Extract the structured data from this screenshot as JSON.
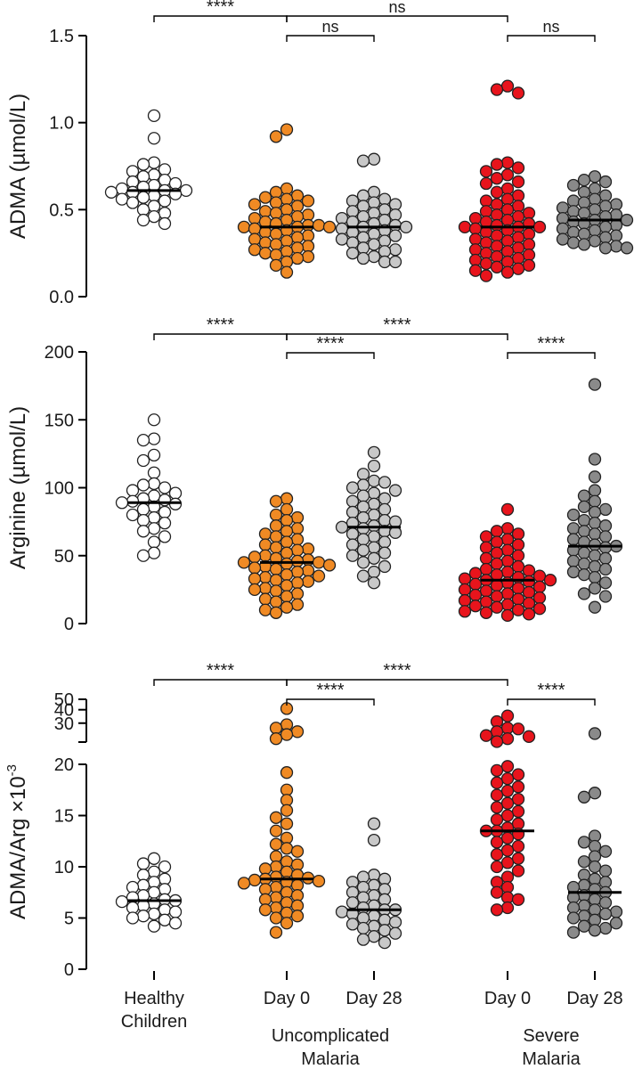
{
  "colors": {
    "healthy": "#ffffff",
    "uncomplicated_day0": "#f08a24",
    "uncomplicated_day28": "#c8c8c8",
    "severe_day0": "#e8141c",
    "severe_day28": "#8a8a8a",
    "stroke": "#222222"
  },
  "x_axis": {
    "groups": [
      {
        "key": "healthy",
        "label_lines": [
          "Healthy",
          "Children"
        ]
      },
      {
        "key": "uncomplicated_day0",
        "label_lines": [
          "Day 0"
        ]
      },
      {
        "key": "uncomplicated_day28",
        "label_lines": [
          "Day 28"
        ]
      },
      {
        "key": "severe_day0",
        "label_lines": [
          "Day 0"
        ]
      },
      {
        "key": "severe_day28",
        "label_lines": [
          "Day 28"
        ]
      }
    ],
    "category_labels": [
      {
        "lines": [
          "Uncomplicated",
          "Malaria"
        ],
        "groups": [
          "uncomplicated_day0",
          "uncomplicated_day28"
        ]
      },
      {
        "lines": [
          "Severe",
          "Malaria"
        ],
        "groups": [
          "severe_day0",
          "severe_day28"
        ]
      }
    ]
  },
  "chart_data": [
    {
      "type": "scatter",
      "title": "",
      "ylabel": "ADMA (µmol/L)",
      "ylim": [
        0,
        1.5
      ],
      "yticks": [
        0,
        0.5,
        1.0,
        1.5
      ],
      "ytick_labels": [
        "0.0",
        "0.5",
        "1.0",
        "1.5"
      ],
      "medians": {
        "healthy": 0.61,
        "uncomplicated_day0": 0.4,
        "uncomplicated_day28": 0.4,
        "severe_day0": 0.4,
        "severe_day28": 0.44
      },
      "series": [
        {
          "name": "healthy",
          "values": [
            1.04,
            0.91,
            0.77,
            0.76,
            0.73,
            0.72,
            0.7,
            0.69,
            0.67,
            0.66,
            0.65,
            0.64,
            0.63,
            0.62,
            0.61,
            0.61,
            0.6,
            0.6,
            0.59,
            0.58,
            0.57,
            0.56,
            0.55,
            0.54,
            0.52,
            0.5,
            0.48,
            0.46,
            0.44,
            0.42
          ]
        },
        {
          "name": "uncomplicated_day0",
          "values": [
            0.96,
            0.92,
            0.62,
            0.6,
            0.58,
            0.57,
            0.56,
            0.55,
            0.54,
            0.53,
            0.52,
            0.5,
            0.49,
            0.48,
            0.47,
            0.46,
            0.45,
            0.44,
            0.43,
            0.42,
            0.41,
            0.41,
            0.4,
            0.4,
            0.4,
            0.39,
            0.38,
            0.37,
            0.36,
            0.35,
            0.34,
            0.33,
            0.32,
            0.31,
            0.3,
            0.29,
            0.28,
            0.27,
            0.26,
            0.25,
            0.24,
            0.23,
            0.22,
            0.2,
            0.18,
            0.14
          ]
        },
        {
          "name": "uncomplicated_day28",
          "values": [
            0.79,
            0.78,
            0.6,
            0.58,
            0.56,
            0.55,
            0.54,
            0.53,
            0.52,
            0.5,
            0.49,
            0.48,
            0.47,
            0.46,
            0.45,
            0.44,
            0.43,
            0.42,
            0.41,
            0.4,
            0.4,
            0.39,
            0.38,
            0.37,
            0.36,
            0.35,
            0.34,
            0.33,
            0.32,
            0.31,
            0.3,
            0.28,
            0.27,
            0.26,
            0.25,
            0.23,
            0.22,
            0.2,
            0.2
          ]
        },
        {
          "name": "severe_day0",
          "values": [
            1.21,
            1.19,
            1.17,
            0.77,
            0.76,
            0.74,
            0.72,
            0.7,
            0.68,
            0.66,
            0.65,
            0.62,
            0.6,
            0.58,
            0.56,
            0.55,
            0.53,
            0.52,
            0.5,
            0.49,
            0.48,
            0.47,
            0.46,
            0.45,
            0.44,
            0.43,
            0.42,
            0.41,
            0.4,
            0.4,
            0.4,
            0.39,
            0.38,
            0.37,
            0.36,
            0.35,
            0.34,
            0.33,
            0.32,
            0.31,
            0.3,
            0.29,
            0.28,
            0.27,
            0.26,
            0.25,
            0.24,
            0.23,
            0.22,
            0.21,
            0.2,
            0.19,
            0.18,
            0.17,
            0.16,
            0.15,
            0.14,
            0.12
          ]
        },
        {
          "name": "severe_day28",
          "values": [
            0.69,
            0.67,
            0.66,
            0.64,
            0.62,
            0.6,
            0.58,
            0.56,
            0.55,
            0.54,
            0.53,
            0.52,
            0.51,
            0.5,
            0.49,
            0.48,
            0.47,
            0.46,
            0.45,
            0.44,
            0.44,
            0.43,
            0.42,
            0.41,
            0.4,
            0.39,
            0.38,
            0.37,
            0.36,
            0.35,
            0.34,
            0.33,
            0.32,
            0.31,
            0.3,
            0.29,
            0.28,
            0.28
          ]
        }
      ],
      "significance": [
        {
          "from": "healthy",
          "to": "uncomplicated_day0",
          "level": 0,
          "label": "****"
        },
        {
          "from": "uncomplicated_day0",
          "to": "severe_day0",
          "level": 0,
          "label": "ns"
        },
        {
          "from": "uncomplicated_day0",
          "to": "uncomplicated_day28",
          "level": 1,
          "label": "ns"
        },
        {
          "from": "severe_day0",
          "to": "severe_day28",
          "level": 1,
          "label": "ns"
        }
      ]
    },
    {
      "type": "scatter",
      "title": "",
      "ylabel": "Arginine (µmol/L)",
      "ylim": [
        0,
        200
      ],
      "yticks": [
        0,
        50,
        100,
        150,
        200
      ],
      "ytick_labels": [
        "0",
        "50",
        "100",
        "150",
        "200"
      ],
      "medians": {
        "healthy": 89,
        "uncomplicated_day0": 45,
        "uncomplicated_day28": 71,
        "severe_day0": 32,
        "severe_day28": 57
      },
      "series": [
        {
          "name": "healthy",
          "values": [
            150,
            136,
            135,
            124,
            120,
            111,
            103,
            102,
            100,
            98,
            96,
            94,
            92,
            91,
            90,
            89,
            88,
            86,
            84,
            82,
            80,
            78,
            76,
            74,
            70,
            68,
            64,
            60,
            52,
            50
          ]
        },
        {
          "name": "uncomplicated_day0",
          "values": [
            92,
            90,
            84,
            80,
            78,
            76,
            72,
            70,
            68,
            66,
            64,
            62,
            60,
            58,
            56,
            55,
            54,
            52,
            50,
            49,
            48,
            47,
            46,
            45,
            45,
            44,
            43,
            42,
            41,
            40,
            39,
            38,
            36,
            35,
            34,
            33,
            32,
            31,
            30,
            28,
            26,
            25,
            24,
            22,
            20,
            18,
            16,
            14,
            12,
            10,
            8
          ]
        },
        {
          "name": "uncomplicated_day28",
          "values": [
            126,
            116,
            110,
            105,
            104,
            102,
            100,
            98,
            96,
            94,
            92,
            90,
            88,
            86,
            84,
            82,
            80,
            78,
            76,
            75,
            74,
            72,
            71,
            70,
            68,
            67,
            66,
            64,
            62,
            60,
            58,
            56,
            54,
            52,
            50,
            48,
            45,
            42,
            38,
            35,
            30
          ]
        },
        {
          "name": "severe_day0",
          "values": [
            84,
            70,
            68,
            66,
            64,
            62,
            60,
            58,
            56,
            54,
            52,
            50,
            48,
            46,
            44,
            42,
            40,
            39,
            38,
            37,
            36,
            35,
            34,
            33,
            32,
            32,
            31,
            30,
            29,
            28,
            27,
            26,
            25,
            24,
            23,
            22,
            21,
            20,
            19,
            18,
            17,
            16,
            15,
            14,
            13,
            12,
            11,
            10,
            9,
            8,
            7,
            6
          ]
        },
        {
          "name": "severe_day28",
          "values": [
            176,
            121,
            108,
            98,
            94,
            90,
            86,
            84,
            82,
            80,
            76,
            74,
            72,
            70,
            68,
            66,
            64,
            62,
            60,
            58,
            57,
            56,
            54,
            52,
            50,
            48,
            46,
            44,
            42,
            40,
            38,
            36,
            34,
            30,
            26,
            22,
            20,
            12
          ]
        }
      ],
      "significance": [
        {
          "from": "healthy",
          "to": "uncomplicated_day0",
          "level": 0,
          "label": "****"
        },
        {
          "from": "uncomplicated_day0",
          "to": "severe_day0",
          "level": 0,
          "label": "****"
        },
        {
          "from": "uncomplicated_day0",
          "to": "uncomplicated_day28",
          "level": 1,
          "label": "****"
        },
        {
          "from": "severe_day0",
          "to": "severe_day28",
          "level": 1,
          "label": "****"
        }
      ]
    },
    {
      "type": "scatter",
      "title": "",
      "ylabel": "ADMA/Arg ×10",
      "ylabel_superscript": "-3",
      "ylim": [
        0,
        50
      ],
      "axis_break": {
        "lower_range": [
          0,
          20
        ],
        "upper_range": [
          20,
          50
        ],
        "upper_scale": "log"
      },
      "yticks": [
        0,
        5,
        10,
        15,
        20,
        30,
        40,
        50
      ],
      "ytick_labels": [
        "0",
        "5",
        "10",
        "15",
        "20",
        "30",
        "40",
        "50"
      ],
      "medians": {
        "healthy": 6.7,
        "uncomplicated_day0": 8.8,
        "uncomplicated_day28": 5.8,
        "severe_day0": 13.5,
        "severe_day28": 7.5
      },
      "series": [
        {
          "name": "healthy",
          "values": [
            10.8,
            10.3,
            10.0,
            9.5,
            9.2,
            8.8,
            8.5,
            8.2,
            8.0,
            7.8,
            7.5,
            7.2,
            7.0,
            6.8,
            6.7,
            6.6,
            6.4,
            6.2,
            6.0,
            5.8,
            5.6,
            5.4,
            5.2,
            5.0,
            4.8,
            4.5,
            4.2
          ]
        },
        {
          "name": "uncomplicated_day0",
          "values": [
            41,
            29,
            27,
            25,
            23.5,
            21.5,
            19.2,
            17.5,
            16.5,
            15.5,
            14.8,
            14.2,
            13.5,
            12.8,
            12.2,
            11.8,
            11.5,
            11.0,
            10.5,
            10.2,
            10.0,
            9.8,
            9.5,
            9.2,
            9.0,
            8.9,
            8.8,
            8.7,
            8.6,
            8.5,
            8.4,
            8.2,
            8.0,
            7.8,
            7.5,
            7.2,
            7.0,
            6.8,
            6.5,
            6.2,
            6.0,
            5.8,
            5.5,
            5.2,
            5.0,
            4.5,
            3.6
          ]
        },
        {
          "name": "uncomplicated_day28",
          "values": [
            14.2,
            12.6,
            9.2,
            9.0,
            8.8,
            8.5,
            8.2,
            8.0,
            7.8,
            7.5,
            7.2,
            7.0,
            6.8,
            6.5,
            6.2,
            6.0,
            5.8,
            5.8,
            5.6,
            5.4,
            5.2,
            5.0,
            4.8,
            4.6,
            4.4,
            4.2,
            4.0,
            3.8,
            3.5,
            3.2,
            2.9,
            2.6
          ]
        },
        {
          "name": "severe_day0",
          "values": [
            35,
            31,
            27,
            26.5,
            25,
            23,
            22.5,
            21.5,
            20.2,
            19.8,
            19.4,
            19.0,
            18.6,
            18.2,
            17.8,
            17.4,
            17.0,
            16.6,
            16.2,
            15.8,
            15.4,
            15.0,
            14.6,
            14.2,
            13.8,
            13.5,
            13.5,
            13.2,
            12.8,
            12.4,
            12.0,
            11.6,
            11.2,
            10.8,
            10.4,
            10.0,
            9.6,
            9.0,
            8.5,
            8.0,
            7.5,
            7.0,
            6.8,
            6.0,
            5.8
          ]
        },
        {
          "name": "severe_day28",
          "values": [
            24,
            17.2,
            16.8,
            13.0,
            12.4,
            12.0,
            11.5,
            11.0,
            10.5,
            10.0,
            9.6,
            9.2,
            8.8,
            8.5,
            8.2,
            8.0,
            7.8,
            7.5,
            7.2,
            7.0,
            6.8,
            6.5,
            6.2,
            6.0,
            5.8,
            5.6,
            5.4,
            5.2,
            5.0,
            4.8,
            4.5,
            4.2,
            4.0,
            3.8,
            3.6
          ]
        }
      ],
      "significance": [
        {
          "from": "healthy",
          "to": "uncomplicated_day0",
          "level": 0,
          "label": "****"
        },
        {
          "from": "uncomplicated_day0",
          "to": "severe_day0",
          "level": 0,
          "label": "****"
        },
        {
          "from": "uncomplicated_day0",
          "to": "uncomplicated_day28",
          "level": 1,
          "label": "****"
        },
        {
          "from": "severe_day0",
          "to": "severe_day28",
          "level": 1,
          "label": "****"
        }
      ]
    }
  ]
}
